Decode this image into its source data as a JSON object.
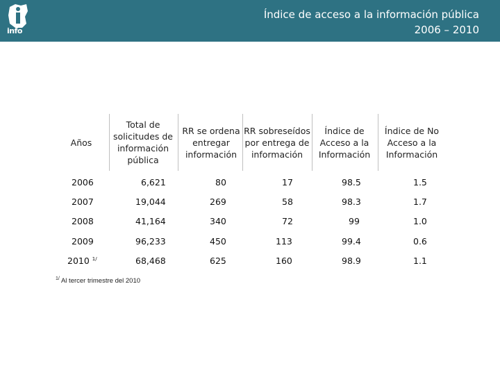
{
  "header": {
    "logo_text": "info",
    "title_line1": "Índice de acceso a la información pública",
    "title_line2": "2006 – 2010"
  },
  "table": {
    "columns": [
      "Años",
      "Total de solicitudes de información pública",
      "RR se ordena entregar información",
      "RR sobreseídos por entrega de información",
      "Índice de Acceso a la Información",
      "Índice de No Acceso a la Información"
    ],
    "rows": [
      {
        "year": "2006",
        "total": "6,621",
        "rr_ordena": "80",
        "rr_sobreseidos": "17",
        "indice_acceso": "98.5",
        "indice_no_acceso": "1.5"
      },
      {
        "year": "2007",
        "total": "19,044",
        "rr_ordena": "269",
        "rr_sobreseidos": "58",
        "indice_acceso": "98.3",
        "indice_no_acceso": "1.7"
      },
      {
        "year": "2008",
        "total": "41,164",
        "rr_ordena": "340",
        "rr_sobreseidos": "72",
        "indice_acceso": "99",
        "indice_no_acceso": "1.0"
      },
      {
        "year": "2009",
        "total": "96,233",
        "rr_ordena": "450",
        "rr_sobreseidos": "113",
        "indice_acceso": "99.4",
        "indice_no_acceso": "0.6"
      },
      {
        "year": "2010",
        "year_note": "1/",
        "total": "68,468",
        "rr_ordena": "625",
        "rr_sobreseidos": "160",
        "indice_acceso": "98.9",
        "indice_no_acceso": "1.1"
      }
    ]
  },
  "footnote": {
    "mark": "1/",
    "text": "Al tercer trimestre del 2010"
  },
  "colors": {
    "header_bg": "#2e7283",
    "header_text": "#ffffff",
    "separator": "#bfbfbf"
  }
}
